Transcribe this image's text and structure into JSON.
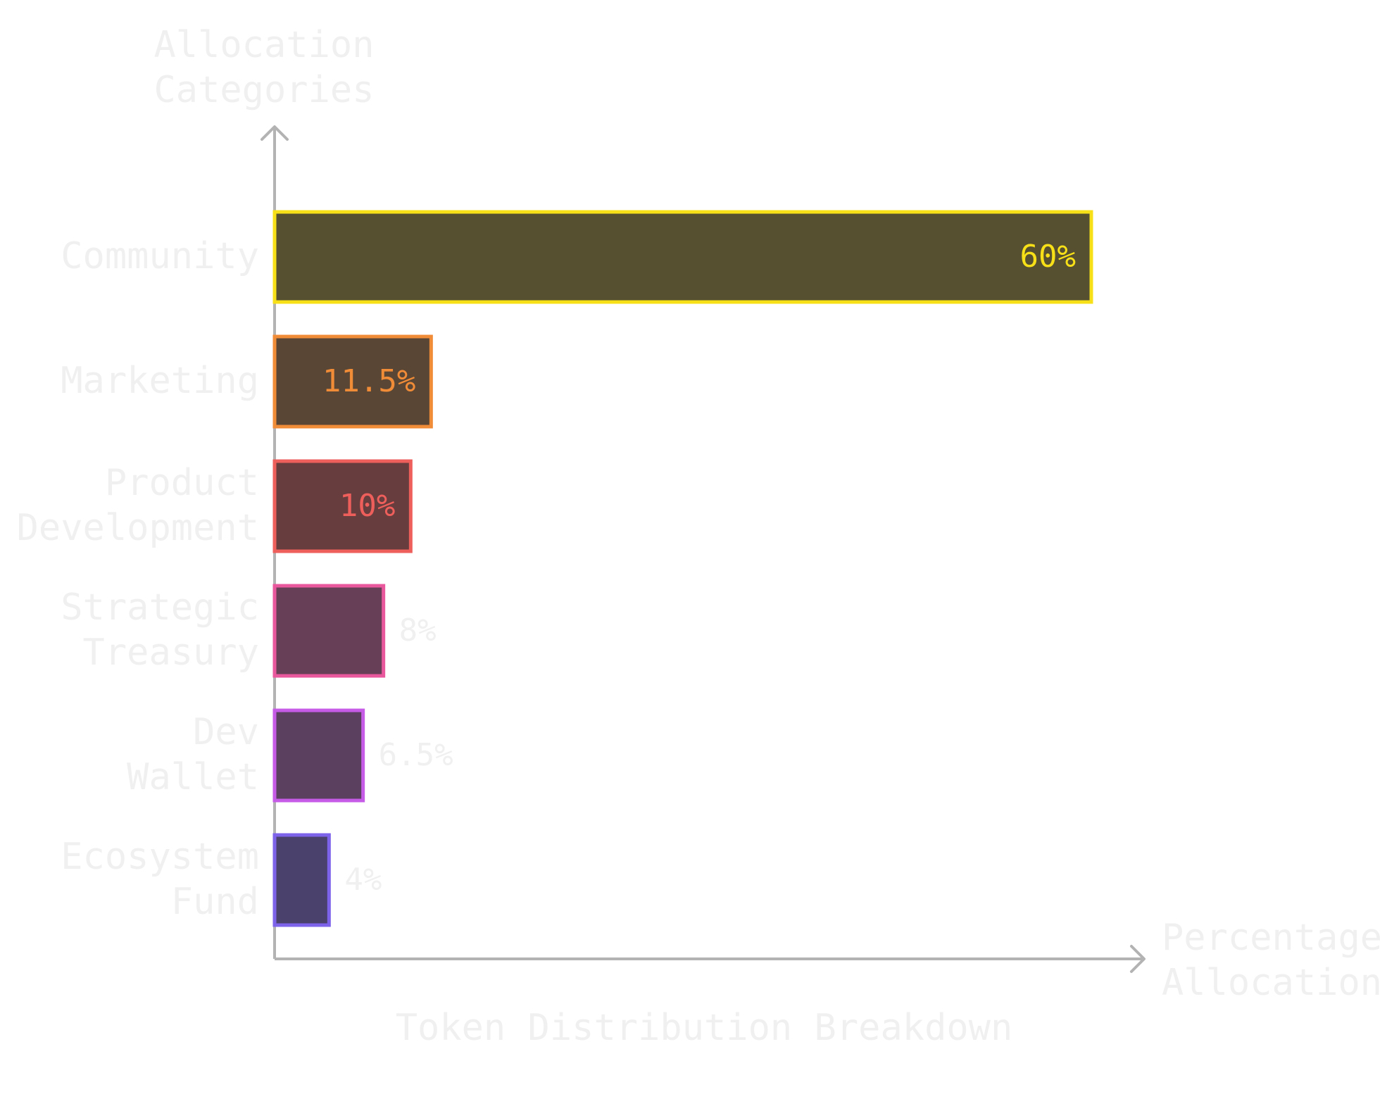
{
  "chart_data": {
    "type": "bar",
    "orientation": "horizontal",
    "title": "Token Distribution Breakdown",
    "xlabel": [
      "Percentage",
      "Allocation"
    ],
    "ylabel": [
      "Allocation",
      "Categories"
    ],
    "xlim": [
      0,
      64
    ],
    "grid": false,
    "categories": [
      [
        "Community"
      ],
      [
        "Marketing"
      ],
      [
        "Product",
        "Development"
      ],
      [
        "Strategic",
        "Treasury"
      ],
      [
        "Dev",
        "Wallet"
      ],
      [
        "Ecosystem",
        "Fund"
      ]
    ],
    "values": [
      60,
      11.5,
      10,
      8,
      6.5,
      4
    ],
    "data_labels": [
      "60%",
      "11.5%",
      "10%",
      "8%",
      "6.5%",
      "4%"
    ],
    "colors": {
      "stroke": [
        "#f7e018",
        "#f08b38",
        "#ee5f5c",
        "#e9589d",
        "#c55be6",
        "#7d62ea"
      ],
      "fill": [
        "#565030",
        "#5a4634",
        "#673e3d",
        "#673f56",
        "#5b405f",
        "#4a426c"
      ],
      "axis": "#b3b3b3",
      "muted_text": "#f0f0f0"
    }
  }
}
